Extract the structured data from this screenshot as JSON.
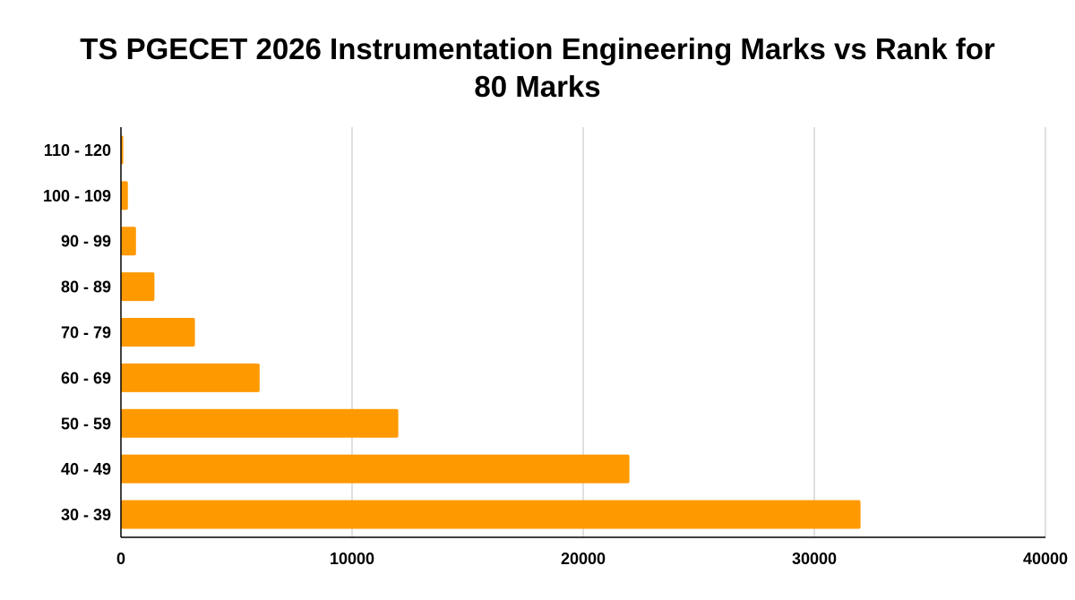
{
  "chart_data": {
    "type": "bar",
    "orientation": "horizontal",
    "title_lines": [
      "TS PGECET 2026 Instrumentation Engineering Marks vs Rank for",
      "80 Marks"
    ],
    "categories": [
      "30 - 39",
      "40 - 49",
      "50 - 59",
      "60 - 69",
      "70 - 79",
      "80 - 89",
      "90 - 99",
      "100 - 109",
      "110 - 120"
    ],
    "values": [
      32000,
      22000,
      12000,
      6000,
      3200,
      1450,
      650,
      300,
      100
    ],
    "xlim": [
      0,
      40000
    ],
    "x_ticks": [
      0,
      10000,
      20000,
      30000,
      40000
    ],
    "x_tick_labels": [
      "0",
      "10000",
      "20000",
      "30000",
      "40000"
    ],
    "xlabel": "",
    "ylabel": "",
    "grid": true,
    "legend": "none",
    "bar_color": "#FF9900",
    "grid_color": "#CCCCCC",
    "axis_color": "#000000"
  }
}
